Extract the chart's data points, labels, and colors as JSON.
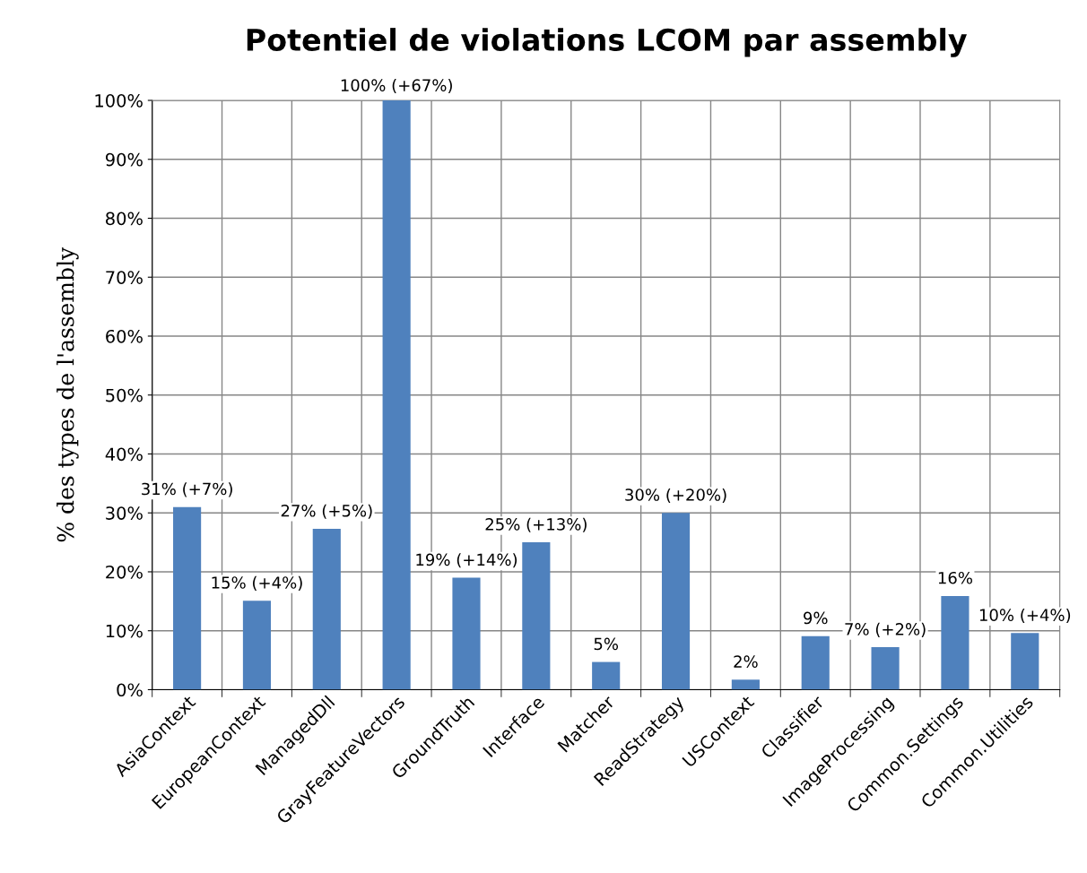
{
  "chart_data": {
    "type": "bar",
    "title": "Potentiel de violations LCOM par assembly",
    "ylabel": "% des types de l'assembly",
    "categories": [
      "AsiaContext",
      "EuropeanContext",
      "ManagedDll",
      "GrayFeatureVectors",
      "GroundTruth",
      "Interface",
      "Matcher",
      "ReadStrategy",
      "USContext",
      "Classifier",
      "ImageProcessing",
      "Common.Settings",
      "Common.Utilities"
    ],
    "values": [
      31,
      15.1,
      27.3,
      100,
      19,
      25,
      4.7,
      30,
      1.7,
      9.1,
      7.2,
      15.9,
      9.6
    ],
    "value_labels": [
      "31% (+7%)",
      "15% (+4%)",
      "27% (+5%)",
      "100% (+67%)",
      "19% (+14%)",
      "25% (+13%)",
      "5%",
      "30% (+20%)",
      "2%",
      "9%",
      "7% (+2%)",
      "16%",
      "10% (+4%)"
    ],
    "color": "#4f81bd",
    "ylim": [
      0,
      100
    ],
    "yticks": [
      {
        "value": 0,
        "label": "0%"
      },
      {
        "value": 10,
        "label": "10%"
      },
      {
        "value": 20,
        "label": "20%"
      },
      {
        "value": 30,
        "label": "30%"
      },
      {
        "value": 40,
        "label": "40%"
      },
      {
        "value": 50,
        "label": "50%"
      },
      {
        "value": 60,
        "label": "60%"
      },
      {
        "value": 70,
        "label": "70%"
      },
      {
        "value": 80,
        "label": "80%"
      },
      {
        "value": 90,
        "label": "90%"
      },
      {
        "value": 100,
        "label": "100%"
      }
    ],
    "grid": true,
    "legend": false
  }
}
